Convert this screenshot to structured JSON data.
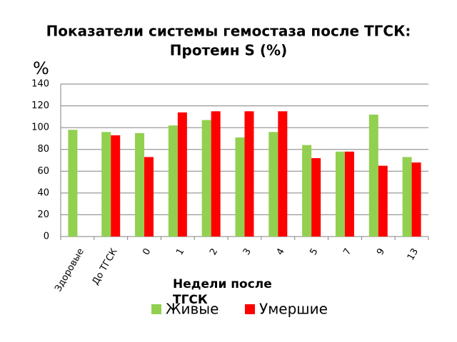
{
  "chart_data": {
    "type": "bar",
    "title": [
      "Показатели системы гемостаза после ТГСК:",
      "Протеин S (%)"
    ],
    "y_label": "%",
    "x_label": "Недели после ТГСК",
    "categories": [
      "Здоровые",
      "До ТГСК",
      "0",
      "1",
      "2",
      "3",
      "4",
      "5",
      "7",
      "9",
      "13"
    ],
    "series": [
      {
        "name": "Живые",
        "color": "#92d050",
        "values": [
          98,
          96,
          95,
          102,
          107,
          91,
          96,
          84,
          78,
          112,
          73
        ]
      },
      {
        "name": "Умершие",
        "color": "#ff0000",
        "values": [
          null,
          93,
          73,
          114,
          115,
          115,
          115,
          72,
          78,
          65,
          68
        ]
      }
    ],
    "ylim": [
      0,
      140
    ],
    "yticks": [
      0,
      20,
      40,
      60,
      80,
      100,
      120,
      140
    ],
    "grid": true
  }
}
